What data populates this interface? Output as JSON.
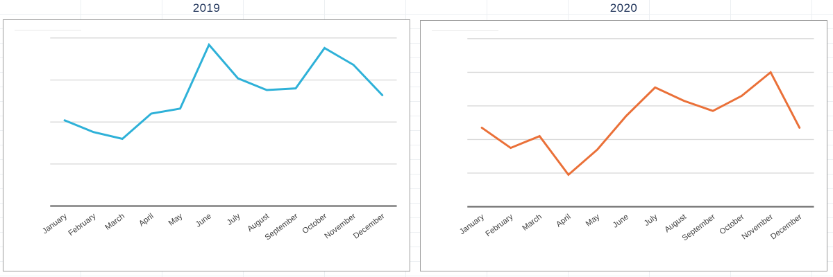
{
  "page": {
    "background_color": "#ffffff",
    "sheet_gridline_color": "#eceff2",
    "card_border_color": "#9a9a9a",
    "title_color": "#22365c",
    "grid_color": "#d9d9d9",
    "axis_color": "#6e6e6e",
    "x_label_color": "#3f3f3f"
  },
  "chart_data": [
    {
      "type": "line",
      "title": "2019",
      "categories": [
        "January",
        "February",
        "March",
        "April",
        "May",
        "June",
        "July",
        "August",
        "September",
        "October",
        "November",
        "December"
      ],
      "series": [
        {
          "name": "2019",
          "values": [
            51,
            44,
            40,
            55,
            58,
            96,
            76,
            69,
            70,
            94,
            84,
            66
          ]
        }
      ],
      "xlabel": "",
      "ylabel": "",
      "ylim": [
        0,
        100
      ],
      "y_tick_labels": [],
      "gridline_divisions": 4,
      "grid": "on",
      "legend": "none",
      "line_color": "#2eb1d8"
    },
    {
      "type": "line",
      "title": "2020",
      "categories": [
        "January",
        "February",
        "March",
        "April",
        "May",
        "June",
        "July",
        "August",
        "September",
        "October",
        "November",
        "December"
      ],
      "series": [
        {
          "name": "2020",
          "values": [
            47,
            35,
            42,
            19,
            34,
            54,
            71,
            63,
            57,
            66,
            80,
            47
          ]
        }
      ],
      "xlabel": "",
      "ylabel": "",
      "ylim": [
        0,
        100
      ],
      "y_tick_labels": [],
      "gridline_divisions": 5,
      "grid": "on",
      "legend": "none",
      "line_color": "#ea7038"
    }
  ]
}
